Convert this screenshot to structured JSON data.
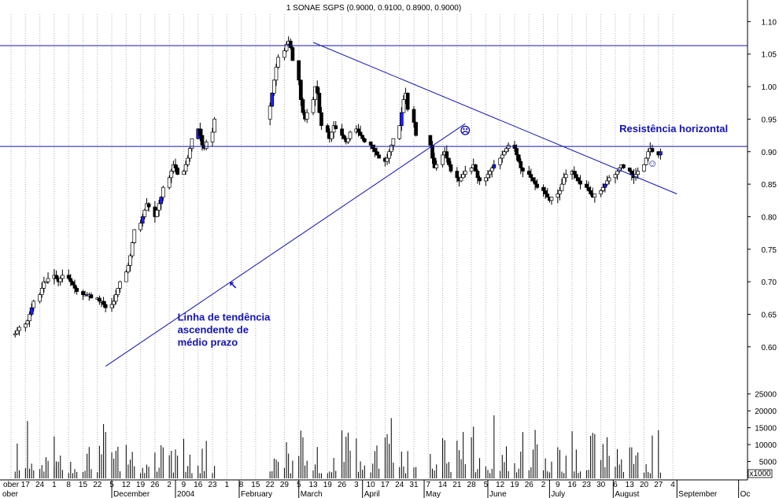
{
  "chart_data": {
    "type": "candlestick",
    "title": "1 SONAE SGPS (0.9000, 0.9100, 0.8900, 0.9000)",
    "price_axis": {
      "ylim": [
        0.555,
        1.115
      ],
      "ticks": [
        "1.10",
        "1.05",
        "1.00",
        "0.95",
        "0.90",
        "0.85",
        "0.80",
        "0.75",
        "0.70",
        "0.65",
        "0.60"
      ]
    },
    "volume_axis": {
      "unit_label": "x1000",
      "ylim": [
        0,
        31000
      ],
      "ticks": [
        "25000",
        "20000",
        "15000",
        "10000",
        "5000"
      ]
    },
    "x_day_ticks": [
      "ober",
      "17",
      "24",
      "1",
      "8",
      "15",
      "22",
      "5",
      "12",
      "19",
      "26",
      "2",
      "9",
      "16",
      "23",
      "1",
      "8",
      "15",
      "22",
      "29",
      "5",
      "13",
      "19",
      "26",
      "3",
      "10",
      "17",
      "24",
      "31",
      "7",
      "14",
      "21",
      "28",
      "5",
      "12",
      "19",
      "26",
      "2",
      "9",
      "16",
      "23",
      "30",
      "6",
      "13",
      "20",
      "27",
      "4"
    ],
    "x_month_labels": [
      "ober",
      "December",
      "2004",
      "February",
      "March",
      "April",
      "May",
      "June",
      "July",
      "August",
      "September",
      "Oc"
    ],
    "grid": "vertical dotted",
    "horizontal_lines": [
      {
        "price": 1.063
      },
      {
        "price": 0.908
      }
    ],
    "trend_lines": [
      {
        "from_date": "2003-11-28",
        "from_price": 0.57,
        "to_date": "2004-05-21",
        "to_price": 0.943
      },
      {
        "from_date": "2004-03-08",
        "from_price": 1.068,
        "to_date": "2004-09-01",
        "to_price": 0.835
      }
    ],
    "annotations": [
      {
        "lines": [
          "Resistência horizontal"
        ],
        "date": "2004-08-04",
        "price": 0.93
      },
      {
        "lines": [
          "Linha de tendência",
          "ascendente de",
          "médio prazo"
        ],
        "date": "2004-01-02",
        "price": 0.64
      },
      {
        "symbol": "↖",
        "date": "2004-01-29",
        "price": 0.69
      },
      {
        "symbol": "☹",
        "date": "2004-05-21",
        "price": 0.927
      },
      {
        "symbol": "☺",
        "date": "2004-08-20",
        "price": 0.877
      }
    ],
    "series": [
      {
        "weeks": [
          {
            "start": "2003-10-15",
            "closes": [
              0.62,
              0.625,
              0.63,
              0.635,
              0.64,
              0.65,
              0.66,
              0.67,
              0.68,
              0.69,
              0.7,
              0.7,
              0.705,
              0.71,
              0.705
            ]
          },
          {
            "start": "2003-11-03",
            "closes": [
              0.71,
              0.705,
              0.7,
              0.705,
              0.71,
              0.705,
              0.7,
              0.695,
              0.69,
              0.685,
              0.68,
              0.68,
              0.68,
              0.68,
              0.675,
              0.675,
              0.67,
              0.67,
              0.665,
              0.66,
              0.665,
              0.67
            ]
          },
          {
            "start": "2003-12-03",
            "closes": [
              0.68,
              0.69,
              0.7,
              0.715,
              0.725,
              0.74,
              0.76,
              0.78,
              0.79,
              0.8,
              0.81,
              0.82,
              0.815,
              0.8,
              0.81,
              0.82,
              0.83,
              0.845,
              0.86,
              0.87,
              0.88,
              0.875,
              0.865,
              0.87,
              0.88,
              0.89,
              0.905,
              0.92,
              0.935,
              0.925,
              0.91,
              0.905,
              0.915,
              0.93,
              0.95
            ]
          },
          {
            "start": "2004-02-16",
            "closes": [
              0.97,
              0.99,
              1.01,
              1.03,
              1.045,
              1.055,
              1.065,
              1.07,
              1.06,
              1.04,
              1.01,
              0.98,
              0.96,
              0.95,
              0.96,
              0.98,
              1.0,
              0.99,
              0.96,
              0.94,
              0.93,
              0.92,
              0.93,
              0.94,
              0.935,
              0.925,
              0.92,
              0.915,
              0.92,
              0.93,
              0.935,
              0.93,
              0.925,
              0.92,
              0.915,
              0.91,
              0.905,
              0.9,
              0.895,
              0.89,
              0.885,
              0.89,
              0.9,
              0.91,
              0.92,
              0.94,
              0.96,
              0.98,
              0.99,
              0.965,
              0.945,
              0.925
            ]
          },
          {
            "start": "2004-05-04",
            "closes": [
              0.91,
              0.89,
              0.875,
              0.88,
              0.895,
              0.9,
              0.89,
              0.88,
              0.87,
              0.86,
              0.855,
              0.86,
              0.865,
              0.87,
              0.875,
              0.88,
              0.87,
              0.86,
              0.855,
              0.86,
              0.865,
              0.87,
              0.875,
              0.88,
              0.89,
              0.895,
              0.9,
              0.905,
              0.91,
              0.905,
              0.895,
              0.885,
              0.875,
              0.87,
              0.865,
              0.86,
              0.855,
              0.85,
              0.845,
              0.84,
              0.835,
              0.83,
              0.825,
              0.83,
              0.835,
              0.84,
              0.85,
              0.86,
              0.865,
              0.87,
              0.865,
              0.86,
              0.855,
              0.85,
              0.845,
              0.84,
              0.835,
              0.83,
              0.835,
              0.84,
              0.845,
              0.85,
              0.855,
              0.86,
              0.865,
              0.87,
              0.875,
              0.88,
              0.875,
              0.87,
              0.865,
              0.86,
              0.865,
              0.87,
              0.88,
              0.89,
              0.9,
              0.905,
              0.9,
              0.895,
              0.9
            ]
          }
        ]
      }
    ]
  }
}
